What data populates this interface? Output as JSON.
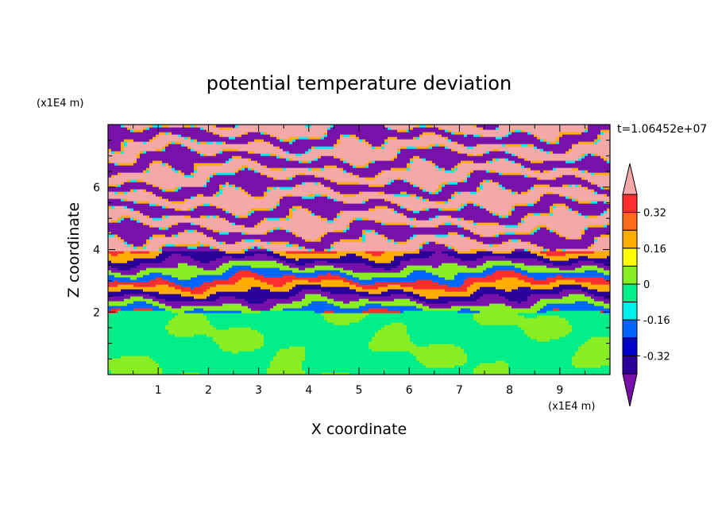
{
  "chart_data": {
    "type": "heatmap",
    "title": "potential temperature deviation",
    "xlabel": "X coordinate",
    "ylabel": "Z coordinate",
    "x_unit": "(x1E4 m)",
    "y_unit": "(x1E4 m)",
    "time_label": "t=1.06452e+07",
    "xlim": [
      0,
      10
    ],
    "ylim": [
      0,
      8
    ],
    "x_ticks": [
      "1",
      "2",
      "3",
      "4",
      "5",
      "6",
      "7",
      "8",
      "9"
    ],
    "y_ticks": [
      "2",
      "4",
      "6"
    ],
    "colorbar": {
      "levels": [
        {
          "from": 0.4,
          "to": null,
          "color": "#f4a8a8"
        },
        {
          "from": 0.32,
          "to": 0.4,
          "color": "#ff2e2e"
        },
        {
          "from": 0.24,
          "to": 0.32,
          "color": "#ff6a1a"
        },
        {
          "from": 0.16,
          "to": 0.24,
          "color": "#ffae00"
        },
        {
          "from": 0.08,
          "to": 0.16,
          "color": "#ffff00"
        },
        {
          "from": 0.0,
          "to": 0.08,
          "color": "#88ee22"
        },
        {
          "from": -0.08,
          "to": 0.0,
          "color": "#00ee88"
        },
        {
          "from": -0.16,
          "to": -0.08,
          "color": "#00eeee"
        },
        {
          "from": -0.24,
          "to": -0.16,
          "color": "#0066ff"
        },
        {
          "from": -0.32,
          "to": -0.24,
          "color": "#0000cc"
        },
        {
          "from": -0.4,
          "to": -0.32,
          "color": "#2a0099"
        },
        {
          "from": null,
          "to": -0.4,
          "color": "#7711aa"
        }
      ],
      "labels": [
        "0.32",
        "0.16",
        "0",
        "-0.16",
        "-0.32"
      ],
      "label_values": [
        0.32,
        0.16,
        0.0,
        -0.16,
        -0.32
      ]
    },
    "field_description": {
      "lower_layer": {
        "z_range": [
          0,
          2
        ],
        "dominant_values": [
          -0.04,
          0.04
        ]
      },
      "mixed_layer": {
        "z_range": [
          2,
          4
        ],
        "banded_values": [
          -0.48,
          -0.36,
          0.2,
          0.36,
          -0.2,
          0.04
        ]
      },
      "upper_layer": {
        "z_range": [
          4,
          8
        ],
        "banded_values": [
          0.48,
          -0.48
        ]
      }
    }
  }
}
